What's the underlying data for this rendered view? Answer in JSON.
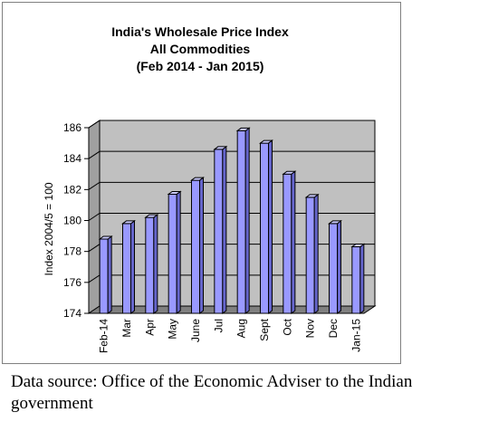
{
  "chart_data": {
    "type": "bar",
    "title_lines": [
      "India's  Wholesale Price Index",
      "All Commodities",
      "(Feb 2014 - Jan  2015)"
    ],
    "xlabel": "",
    "ylabel": "Index 2004/5 = 100",
    "categories": [
      "Feb-14",
      "Mar",
      "Apr",
      "May",
      "June",
      "Jul",
      "Aug",
      "Sept",
      "Oct",
      "Nov",
      "Dec",
      "Jan-15"
    ],
    "values": [
      178.8,
      179.8,
      180.2,
      181.7,
      182.6,
      184.6,
      185.8,
      185.0,
      183.0,
      181.5,
      179.8,
      178.3
    ],
    "ylim": [
      174,
      186
    ],
    "yticks": [
      174,
      176,
      178,
      180,
      182,
      184,
      186
    ],
    "grid": true,
    "bar_style": "3d-cylinder",
    "colors": {
      "bar_front": "#9999ff",
      "bar_top": "#ccccff",
      "bar_side": "#6666cc",
      "bar_outline": "#000000",
      "wall": "#c0c0c0",
      "floor": "#808080"
    }
  },
  "source_note": "Data source: Office of the Economic Adviser to the Indian government"
}
